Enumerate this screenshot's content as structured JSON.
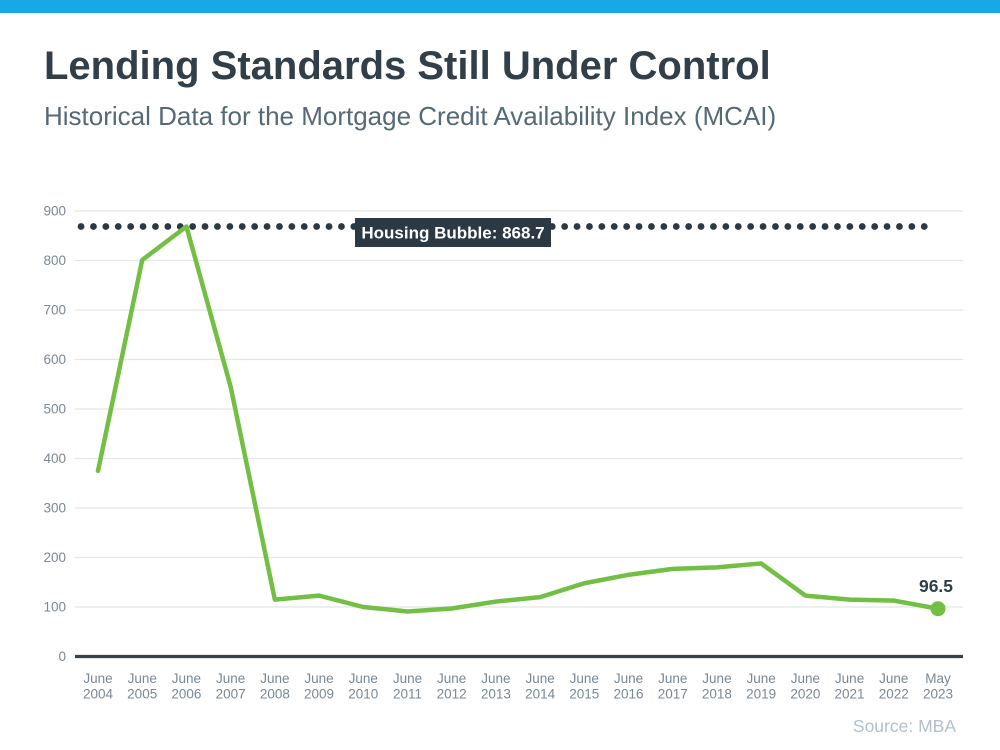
{
  "header": {
    "title": "Lending Standards Still Under Control",
    "subtitle": "Historical Data for the Mortgage Credit Availability Index (MCAI)"
  },
  "source": "Source: MBA",
  "colors": {
    "topbar": "#18A8E8",
    "line": "#72BF44",
    "title": "#323E48",
    "subtitle": "#566976",
    "axis_label": "#7A8894",
    "grid": "#E4E6E8",
    "axis": "#37424C",
    "annotation": "#2C3945",
    "badge_bg": "#2C3945",
    "badge_text": "#FFFFFF",
    "point_label": "#323E48",
    "source": "#B3C0C9"
  },
  "chart_data": {
    "type": "line",
    "title": "Lending Standards Still Under Control",
    "subtitle": "Historical Data for the Mortgage Credit Availability Index (MCAI)",
    "series_name": "MCAI",
    "categories": [
      "June 2004",
      "June 2005",
      "June 2006",
      "June 2007",
      "June 2008",
      "June 2009",
      "June 2010",
      "June 2011",
      "June 2012",
      "June 2013",
      "June 2014",
      "June 2015",
      "June 2016",
      "June 2017",
      "June 2018",
      "June 2019",
      "June 2020",
      "June 2021",
      "June 2022",
      "May 2023"
    ],
    "values": [
      375,
      801,
      868.7,
      545,
      115,
      123,
      100,
      91,
      97,
      111,
      120,
      148,
      165,
      177,
      180,
      188,
      123,
      115,
      113,
      96.5
    ],
    "ylim": [
      0,
      900
    ],
    "yticks": [
      0,
      100,
      200,
      300,
      400,
      500,
      600,
      700,
      800,
      900
    ],
    "grid": true,
    "legend": false,
    "xlabel": "",
    "ylabel": "",
    "annotation": {
      "label": "Housing Bubble: 868.7",
      "value": 868.7
    },
    "point_label": {
      "text": "96.5",
      "index": 19,
      "value": 96.5
    },
    "source": "Source: MBA"
  }
}
